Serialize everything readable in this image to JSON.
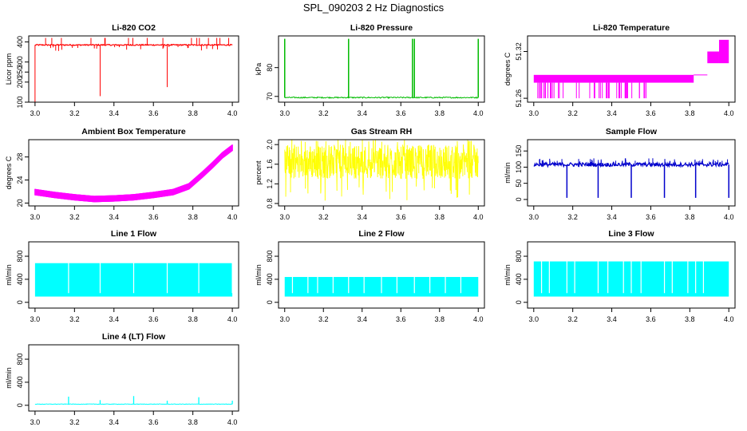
{
  "page": {
    "title": "SPL_090203  2 Hz Diagnostics"
  },
  "colors": {
    "co2": "#ff0000",
    "pressure": "#00bb00",
    "temperature": "#ff00ff",
    "ambient": "#ff00ff",
    "rh": "#ffff00",
    "sample": "#0000cc",
    "line_flow": "#00ffff"
  },
  "chart_data": [
    {
      "type": "line",
      "title": "Li-820 CO2",
      "xlabel": "",
      "ylabel": "Licor ppm",
      "color": "#ff0000",
      "xlim": [
        3.0,
        4.0
      ],
      "ylim": [
        100,
        430
      ],
      "xticks": [
        "3.0",
        "3.2",
        "3.4",
        "3.6",
        "3.8",
        "4.0"
      ],
      "yticks": [
        {
          "v": 100,
          "label": "100"
        },
        {
          "v": 200,
          "label": "200"
        },
        {
          "v": 250,
          "label": "250"
        },
        {
          "v": 300,
          "label": "300"
        },
        {
          "v": 400,
          "label": "400"
        }
      ],
      "pattern": "co2",
      "series": [
        {
          "values": {
            "baseline": 385,
            "spike_high": 420,
            "big_dips": [
              {
                "x": 3.0,
                "y": 100
              },
              {
                "x": 3.33,
                "y": 130
              },
              {
                "x": 3.67,
                "y": 175
              }
            ]
          }
        }
      ]
    },
    {
      "type": "line",
      "title": "Li-820 Pressure",
      "xlabel": "",
      "ylabel": "kPa",
      "color": "#00bb00",
      "xlim": [
        3.0,
        4.0
      ],
      "ylim": [
        68,
        91
      ],
      "xticks": [
        "3.0",
        "3.2",
        "3.4",
        "3.6",
        "3.8",
        "4.0"
      ],
      "yticks": [
        {
          "v": 70,
          "label": "70"
        },
        {
          "v": 80,
          "label": "80"
        }
      ],
      "pattern": "pressure",
      "series": [
        {
          "values": {
            "baseline": 69.6,
            "spike_x": [
              3.0,
              3.33,
              3.66,
              3.67,
              4.0
            ],
            "spike_top": 90
          }
        }
      ]
    },
    {
      "type": "line",
      "title": "Li-820 Temperature",
      "xlabel": "",
      "ylabel": "degrees C",
      "color": "#ff00ff",
      "xlim": [
        3.0,
        4.0
      ],
      "ylim": [
        51.255,
        51.34
      ],
      "xticks": [
        "3.0",
        "3.2",
        "3.4",
        "3.6",
        "3.8",
        "4.0"
      ],
      "yticks": [
        {
          "v": 51.26,
          "label": "51.26"
        },
        {
          "v": 51.32,
          "label": "51.32"
        }
      ],
      "pattern": "licortemp",
      "series": [
        {
          "values": {
            "band_low": 51.28,
            "band_high": 51.29,
            "drop_level": 51.26,
            "step_1": {
              "x": [
                3.89,
                3.95
              ],
              "y": [
                51.305,
                51.32
              ]
            },
            "step_2": {
              "x": [
                3.95,
                4.0
              ],
              "y": [
                51.305,
                51.335
              ]
            }
          }
        }
      ]
    },
    {
      "type": "line",
      "title": "Ambient Box Temperature",
      "xlabel": "",
      "ylabel": "degrees C",
      "color": "#ff00ff",
      "xlim": [
        3.0,
        4.0
      ],
      "ylim": [
        19.5,
        31
      ],
      "xticks": [
        "3.0",
        "3.2",
        "3.4",
        "3.6",
        "3.8",
        "4.0"
      ],
      "yticks": [
        {
          "v": 20,
          "label": "20"
        },
        {
          "v": 24,
          "label": "24"
        },
        {
          "v": 28,
          "label": "28"
        }
      ],
      "pattern": "ambient",
      "series": [
        {
          "x": [
            3.0,
            3.1,
            3.2,
            3.3,
            3.4,
            3.5,
            3.6,
            3.7,
            3.78,
            3.85,
            3.9,
            3.95,
            4.0
          ],
          "values": [
            21.9,
            21.4,
            21.0,
            20.7,
            20.8,
            21.0,
            21.4,
            21.9,
            22.9,
            25.0,
            26.6,
            28.3,
            29.6
          ]
        }
      ]
    },
    {
      "type": "line",
      "title": "Gas Stream RH",
      "xlabel": "",
      "ylabel": "percent",
      "color": "#ffff00",
      "xlim": [
        3.0,
        4.0
      ],
      "ylim": [
        0.75,
        2.1
      ],
      "xticks": [
        "3.0",
        "3.2",
        "3.4",
        "3.6",
        "3.8",
        "4.0"
      ],
      "yticks": [
        {
          "v": 0.8,
          "label": "0.8"
        },
        {
          "v": 1.2,
          "label": "1.2"
        },
        {
          "v": 1.6,
          "label": "1.6"
        },
        {
          "v": 2.0,
          "label": "2.0"
        }
      ],
      "pattern": "rh",
      "series": [
        {
          "values": {
            "low": 1.3,
            "high": 2.0,
            "min": 0.85,
            "max": 2.1
          }
        }
      ]
    },
    {
      "type": "line",
      "title": "Sample Flow",
      "xlabel": "",
      "ylabel": "ml/min",
      "color": "#0000cc",
      "xlim": [
        3.0,
        4.0
      ],
      "ylim": [
        -20,
        185
      ],
      "xticks": [
        "3.0",
        "3.2",
        "3.4",
        "3.6",
        "3.8",
        "4.0"
      ],
      "yticks": [
        {
          "v": 0,
          "label": "0"
        },
        {
          "v": 50,
          "label": "50"
        },
        {
          "v": 100,
          "label": "100"
        },
        {
          "v": 150,
          "label": "150"
        }
      ],
      "pattern": "sampleflow",
      "series": [
        {
          "values": {
            "baseline": 108,
            "dip_x": [
              3.17,
              3.33,
              3.5,
              3.67,
              3.83,
              4.0
            ],
            "dip_y": 5
          }
        }
      ]
    },
    {
      "type": "area",
      "title": "Line 1 Flow",
      "xlabel": "",
      "ylabel": "ml/min",
      "color": "#00ffff",
      "xlim": [
        3.0,
        4.0
      ],
      "ylim": [
        -100,
        1050
      ],
      "xticks": [
        "3.0",
        "3.2",
        "3.4",
        "3.6",
        "3.8",
        "4.0"
      ],
      "yticks": [
        {
          "v": 0,
          "label": "0"
        },
        {
          "v": 400,
          "label": "400"
        },
        {
          "v": 800,
          "label": "800"
        }
      ],
      "pattern": "lineflow",
      "series": [
        {
          "values": {
            "low": 100,
            "high": 680,
            "gaps": [
              3.17,
              3.33,
              3.5,
              3.67,
              3.83,
              4.0
            ]
          }
        }
      ]
    },
    {
      "type": "area",
      "title": "Line 2 Flow",
      "xlabel": "",
      "ylabel": "ml/min",
      "color": "#00ffff",
      "xlim": [
        3.0,
        4.0
      ],
      "ylim": [
        -100,
        1050
      ],
      "xticks": [
        "3.0",
        "3.2",
        "3.4",
        "3.6",
        "3.8",
        "4.0"
      ],
      "yticks": [
        {
          "v": 0,
          "label": "0"
        },
        {
          "v": 400,
          "label": "400"
        },
        {
          "v": 800,
          "label": "800"
        }
      ],
      "pattern": "lineflow",
      "series": [
        {
          "values": {
            "low": 100,
            "high": 440,
            "gaps": [
              3.04,
              3.12,
              3.17,
              3.25,
              3.33,
              3.41,
              3.5,
              3.58,
              3.67,
              3.75,
              3.83,
              3.91
            ]
          }
        }
      ]
    },
    {
      "type": "area",
      "title": "Line 3 Flow",
      "xlabel": "",
      "ylabel": "ml/min",
      "color": "#00ffff",
      "xlim": [
        3.0,
        4.0
      ],
      "ylim": [
        -100,
        1050
      ],
      "xticks": [
        "3.0",
        "3.2",
        "3.4",
        "3.6",
        "3.8",
        "4.0"
      ],
      "yticks": [
        {
          "v": 0,
          "label": "0"
        },
        {
          "v": 400,
          "label": "400"
        },
        {
          "v": 800,
          "label": "800"
        }
      ],
      "pattern": "lineflow",
      "series": [
        {
          "values": {
            "low": 100,
            "high": 710,
            "gaps": [
              3.04,
              3.08,
              3.17,
              3.21,
              3.33,
              3.38,
              3.46,
              3.5,
              3.55,
              3.67,
              3.71,
              3.79,
              3.83,
              3.87
            ]
          }
        }
      ]
    },
    {
      "type": "line",
      "title": "Line 4 (LT) Flow",
      "xlabel": "",
      "ylabel": "ml/min",
      "color": "#00ffff",
      "xlim": [
        3.0,
        4.0
      ],
      "ylim": [
        -100,
        1050
      ],
      "xticks": [
        "3.0",
        "3.2",
        "3.4",
        "3.6",
        "3.8",
        "4.0"
      ],
      "yticks": [
        {
          "v": 0,
          "label": "0"
        },
        {
          "v": 400,
          "label": "400"
        },
        {
          "v": 800,
          "label": "800"
        }
      ],
      "pattern": "line4",
      "series": [
        {
          "values": {
            "baseline": 20,
            "spikes": [
              {
                "x": 3.17,
                "y": 150
              },
              {
                "x": 3.33,
                "y": 90
              },
              {
                "x": 3.5,
                "y": 160
              },
              {
                "x": 3.67,
                "y": 80
              },
              {
                "x": 3.83,
                "y": 140
              },
              {
                "x": 4.0,
                "y": 80
              }
            ]
          }
        }
      ]
    }
  ]
}
